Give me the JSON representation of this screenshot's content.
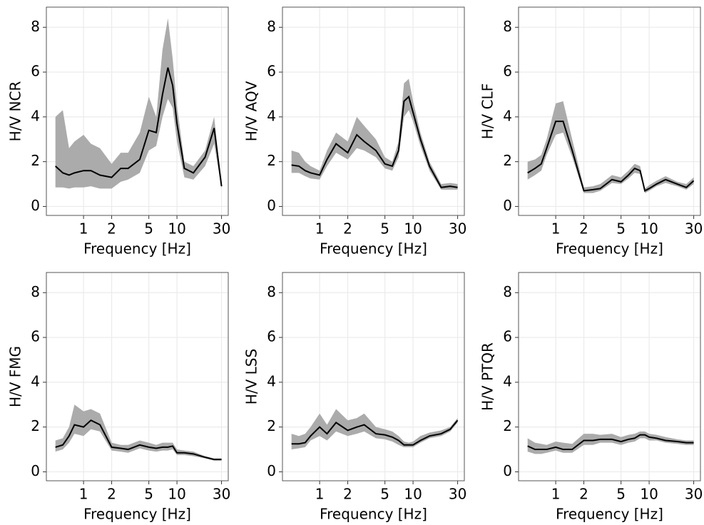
{
  "chart_data": [
    {
      "type": "line",
      "y_label": "H/V NCR",
      "x_label": "Frequency [Hz]",
      "log_x": true,
      "grid": true,
      "xlim": [
        0.4,
        35.4
      ],
      "ylim": [
        -0.4,
        8.9
      ],
      "xticks": [
        1,
        2,
        5,
        10,
        30
      ],
      "yticks": [
        0,
        2,
        4,
        6,
        8
      ],
      "x": [
        0.5,
        0.6,
        0.7,
        0.8,
        1,
        1.2,
        1.5,
        2,
        2.5,
        3,
        4,
        5,
        6,
        7,
        8,
        9,
        10,
        12,
        15,
        20,
        25,
        30
      ],
      "series": [
        {
          "color": "#000000",
          "values": [
            1.8,
            1.5,
            1.4,
            1.5,
            1.6,
            1.6,
            1.4,
            1.3,
            1.7,
            1.7,
            2.1,
            3.4,
            3.3,
            5.0,
            6.2,
            5.4,
            3.7,
            1.7,
            1.5,
            2.2,
            3.5,
            0.9
          ]
        }
      ],
      "band": {
        "color": "#ababab",
        "lower": [
          0.85,
          0.85,
          0.8,
          0.85,
          0.85,
          0.9,
          0.8,
          0.8,
          1.1,
          1.2,
          1.5,
          2.5,
          2.7,
          4.0,
          4.8,
          4.4,
          2.9,
          1.3,
          1.2,
          1.8,
          2.8,
          0.8
        ],
        "upper": [
          4.0,
          4.3,
          2.6,
          2.9,
          3.2,
          2.8,
          2.6,
          1.9,
          2.4,
          2.4,
          3.3,
          4.9,
          4.0,
          7.0,
          8.4,
          6.6,
          4.5,
          2.0,
          1.8,
          2.5,
          4.0,
          1.0
        ]
      }
    },
    {
      "type": "line",
      "y_label": "H/V AQV",
      "x_label": "Frequency [Hz]",
      "log_x": true,
      "grid": true,
      "xlim": [
        0.4,
        35.4
      ],
      "ylim": [
        -0.4,
        8.9
      ],
      "xticks": [
        1,
        2,
        5,
        10,
        30
      ],
      "yticks": [
        0,
        2,
        4,
        6,
        8
      ],
      "x": [
        0.5,
        0.6,
        0.7,
        0.8,
        1,
        1.2,
        1.5,
        2,
        2.5,
        3,
        4,
        5,
        6,
        7,
        8,
        9,
        10,
        12,
        15,
        20,
        25,
        30
      ],
      "series": [
        {
          "color": "#000000",
          "values": [
            1.85,
            1.8,
            1.6,
            1.5,
            1.4,
            2.1,
            2.8,
            2.4,
            3.2,
            2.9,
            2.5,
            1.9,
            1.8,
            2.5,
            4.7,
            4.9,
            4.2,
            3.0,
            1.8,
            0.85,
            0.9,
            0.85
          ]
        }
      ],
      "band": {
        "color": "#ababab",
        "lower": [
          1.5,
          1.5,
          1.35,
          1.25,
          1.2,
          1.8,
          2.4,
          2.1,
          2.6,
          2.5,
          2.2,
          1.7,
          1.6,
          2.2,
          4.0,
          4.3,
          3.8,
          2.7,
          1.6,
          0.75,
          0.75,
          0.75
        ],
        "upper": [
          2.5,
          2.4,
          2.0,
          1.8,
          1.6,
          2.5,
          3.3,
          2.9,
          4.0,
          3.6,
          3.0,
          2.2,
          2.0,
          2.9,
          5.5,
          5.7,
          4.7,
          3.3,
          2.0,
          1.0,
          1.05,
          1.0
        ]
      }
    },
    {
      "type": "line",
      "y_label": "H/V CLF",
      "x_label": "Frequency [Hz]",
      "log_x": true,
      "grid": true,
      "xlim": [
        0.4,
        35.4
      ],
      "ylim": [
        -0.4,
        8.9
      ],
      "xticks": [
        1,
        2,
        5,
        10,
        30
      ],
      "yticks": [
        0,
        2,
        4,
        6,
        8
      ],
      "x": [
        0.5,
        0.6,
        0.7,
        0.8,
        1,
        1.2,
        1.5,
        2,
        2.5,
        3,
        4,
        5,
        6,
        7,
        8,
        9,
        10,
        12,
        15,
        20,
        25,
        30
      ],
      "series": [
        {
          "color": "#000000",
          "values": [
            1.5,
            1.7,
            1.9,
            2.6,
            3.8,
            3.8,
            2.5,
            0.7,
            0.75,
            0.8,
            1.2,
            1.1,
            1.4,
            1.7,
            1.6,
            0.7,
            0.8,
            1.0,
            1.2,
            1.0,
            0.85,
            1.15
          ]
        }
      ],
      "band": {
        "color": "#ababab",
        "lower": [
          1.2,
          1.4,
          1.6,
          2.3,
          3.2,
          3.3,
          2.2,
          0.6,
          0.6,
          0.7,
          1.05,
          1.0,
          1.25,
          1.5,
          1.45,
          0.6,
          0.7,
          0.9,
          1.05,
          0.9,
          0.75,
          1.0
        ],
        "upper": [
          2.0,
          2.1,
          2.3,
          3.0,
          4.6,
          4.7,
          3.0,
          0.85,
          0.9,
          1.0,
          1.4,
          1.3,
          1.6,
          1.9,
          1.8,
          0.8,
          0.95,
          1.15,
          1.35,
          1.1,
          1.0,
          1.3
        ]
      }
    },
    {
      "type": "line",
      "y_label": "H/V FMG",
      "x_label": "Frequency [Hz]",
      "log_x": true,
      "grid": true,
      "xlim": [
        0.4,
        35.4
      ],
      "ylim": [
        -0.4,
        8.9
      ],
      "xticks": [
        1,
        2,
        5,
        10,
        30
      ],
      "yticks": [
        0,
        2,
        4,
        6,
        8
      ],
      "x": [
        0.5,
        0.6,
        0.7,
        0.8,
        1,
        1.2,
        1.5,
        2,
        2.5,
        3,
        4,
        5,
        6,
        7,
        8,
        9,
        10,
        12,
        15,
        20,
        25,
        30
      ],
      "series": [
        {
          "color": "#000000",
          "values": [
            1.1,
            1.2,
            1.6,
            2.1,
            2.0,
            2.3,
            2.1,
            1.1,
            1.05,
            1.0,
            1.2,
            1.1,
            1.05,
            1.1,
            1.1,
            1.15,
            0.85,
            0.85,
            0.8,
            0.65,
            0.55,
            0.55
          ]
        }
      ],
      "band": {
        "color": "#ababab",
        "lower": [
          0.9,
          1.0,
          1.3,
          1.7,
          1.6,
          1.9,
          1.8,
          0.95,
          0.9,
          0.85,
          1.05,
          0.95,
          0.9,
          0.95,
          0.95,
          1.0,
          0.75,
          0.75,
          0.7,
          0.6,
          0.5,
          0.5
        ],
        "upper": [
          1.4,
          1.5,
          2.0,
          3.0,
          2.7,
          2.8,
          2.6,
          1.3,
          1.2,
          1.2,
          1.4,
          1.3,
          1.2,
          1.3,
          1.3,
          1.3,
          1.0,
          0.95,
          0.9,
          0.7,
          0.6,
          0.6
        ]
      }
    },
    {
      "type": "line",
      "y_label": "H/V LSS",
      "x_label": "Frequency [Hz]",
      "log_x": true,
      "grid": true,
      "xlim": [
        0.4,
        35.4
      ],
      "ylim": [
        -0.4,
        8.9
      ],
      "xticks": [
        1,
        2,
        5,
        10,
        30
      ],
      "yticks": [
        0,
        2,
        4,
        6,
        8
      ],
      "x": [
        0.5,
        0.6,
        0.7,
        0.8,
        1,
        1.2,
        1.5,
        2,
        2.5,
        3,
        4,
        5,
        6,
        7,
        8,
        9,
        10,
        12,
        15,
        20,
        25,
        30
      ],
      "series": [
        {
          "color": "#000000",
          "values": [
            1.25,
            1.25,
            1.3,
            1.6,
            2.0,
            1.7,
            2.2,
            1.85,
            2.0,
            2.1,
            1.7,
            1.65,
            1.55,
            1.4,
            1.2,
            1.2,
            1.2,
            1.4,
            1.6,
            1.7,
            1.9,
            2.3
          ]
        }
      ],
      "band": {
        "color": "#ababab",
        "lower": [
          1.0,
          1.05,
          1.1,
          1.4,
          1.6,
          1.4,
          1.8,
          1.6,
          1.7,
          1.8,
          1.5,
          1.45,
          1.35,
          1.2,
          1.1,
          1.1,
          1.1,
          1.3,
          1.5,
          1.6,
          1.8,
          2.2
        ],
        "upper": [
          1.7,
          1.6,
          1.7,
          2.0,
          2.6,
          2.1,
          2.8,
          2.3,
          2.4,
          2.6,
          2.0,
          1.9,
          1.8,
          1.6,
          1.35,
          1.3,
          1.35,
          1.6,
          1.75,
          1.85,
          2.0,
          2.4
        ]
      }
    },
    {
      "type": "line",
      "y_label": "H/V PTQR",
      "x_label": "Frequency [Hz]",
      "log_x": true,
      "grid": true,
      "xlim": [
        0.4,
        35.4
      ],
      "ylim": [
        -0.4,
        8.9
      ],
      "xticks": [
        1,
        2,
        5,
        10,
        30
      ],
      "yticks": [
        0,
        2,
        4,
        6,
        8
      ],
      "x": [
        0.5,
        0.6,
        0.7,
        0.8,
        1,
        1.2,
        1.5,
        2,
        2.5,
        3,
        4,
        5,
        6,
        7,
        8,
        9,
        10,
        12,
        15,
        20,
        25,
        30
      ],
      "series": [
        {
          "color": "#000000",
          "values": [
            1.15,
            1.0,
            1.0,
            1.0,
            1.1,
            1.0,
            1.0,
            1.4,
            1.4,
            1.45,
            1.45,
            1.35,
            1.45,
            1.5,
            1.65,
            1.65,
            1.55,
            1.5,
            1.4,
            1.35,
            1.3,
            1.3
          ]
        }
      ],
      "band": {
        "color": "#ababab",
        "lower": [
          0.9,
          0.8,
          0.8,
          0.85,
          0.95,
          0.85,
          0.85,
          1.2,
          1.2,
          1.3,
          1.3,
          1.2,
          1.3,
          1.35,
          1.5,
          1.5,
          1.4,
          1.4,
          1.3,
          1.25,
          1.2,
          1.2
        ],
        "upper": [
          1.5,
          1.3,
          1.25,
          1.2,
          1.35,
          1.3,
          1.25,
          1.7,
          1.7,
          1.65,
          1.7,
          1.55,
          1.65,
          1.7,
          1.8,
          1.8,
          1.7,
          1.65,
          1.55,
          1.45,
          1.4,
          1.4
        ]
      }
    }
  ]
}
